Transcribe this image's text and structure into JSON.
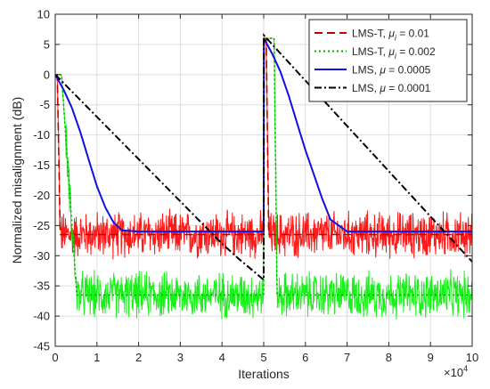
{
  "chart_data": {
    "type": "line",
    "title": "",
    "xlabel": "Iterations",
    "ylabel": "Normalized misalignment (dB)",
    "xlim": [
      0,
      100000
    ],
    "ylim": [
      -45,
      10
    ],
    "x_ticks": [
      0,
      10000,
      20000,
      30000,
      40000,
      50000,
      60000,
      70000,
      80000,
      90000,
      100000
    ],
    "x_tick_labels": [
      "0",
      "1",
      "2",
      "3",
      "4",
      "5",
      "6",
      "7",
      "8",
      "9",
      "10"
    ],
    "x_multiplier_label": "×10",
    "x_multiplier_exponent": "4",
    "y_ticks": [
      10,
      5,
      0,
      -5,
      -10,
      -15,
      -20,
      -25,
      -30,
      -35,
      -40,
      -45
    ],
    "y_tick_labels": [
      "10",
      "5",
      "0",
      "-5",
      "-10",
      "-15",
      "-20",
      "-25",
      "-30",
      "-35",
      "-40",
      "-45"
    ],
    "grid": true,
    "legend_position": "top-right",
    "series": [
      {
        "name": "LMS-T, μi = 0.01",
        "legend": {
          "prefix": "LMS-T, ",
          "symbol": "μ",
          "sub": "i",
          "suffix": " = 0.01"
        },
        "color": "#c00000",
        "noise_color": "#ff0000",
        "dash": "dashed",
        "noisy": true,
        "noise_amplitude": 3,
        "x": [
          0,
          500,
          1200,
          50000,
          50050,
          50600,
          51200,
          100000
        ],
        "y": [
          0,
          0,
          -26.5,
          -26.5,
          6,
          6,
          -26.5,
          -26.5
        ]
      },
      {
        "name": "LMS-T, μi = 0.002",
        "legend": {
          "prefix": "LMS-T, ",
          "symbol": "μ",
          "sub": "i",
          "suffix": " = 0.002"
        },
        "color": "#00b000",
        "noise_color": "#00ee00",
        "dash": "dotted",
        "noisy": true,
        "noise_amplitude": 3,
        "x": [
          0,
          1500,
          5200,
          50000,
          50050,
          52500,
          53200,
          100000
        ],
        "y": [
          0,
          0,
          -36.5,
          -36.5,
          6,
          6,
          -36.5,
          -36.5
        ]
      },
      {
        "name": "LMS, μ = 0.0005",
        "legend": {
          "prefix": "LMS, ",
          "symbol": "μ",
          "sub": "",
          "suffix": " = 0.0005"
        },
        "color": "#1010e0",
        "noise_color": "#1010e0",
        "dash": "solid",
        "noisy": false,
        "x": [
          0,
          2000,
          4000,
          6000,
          8000,
          10000,
          12000,
          14000,
          16000,
          20000,
          50000,
          50050,
          52000,
          54000,
          56000,
          58000,
          60000,
          62000,
          64000,
          66000,
          70000,
          100000
        ],
        "y": [
          0,
          -2.5,
          -5.5,
          -9.5,
          -14,
          -18.5,
          -22,
          -24.5,
          -25.8,
          -26,
          -26,
          6,
          3.5,
          0.5,
          -3.5,
          -8,
          -12.5,
          -16.5,
          -20.5,
          -24,
          -26,
          -26
        ]
      },
      {
        "name": "LMS, μ = 0.0001",
        "legend": {
          "prefix": "LMS, ",
          "symbol": "μ",
          "sub": "",
          "suffix": " = 0.0001"
        },
        "color": "#000000",
        "noise_color": "#000000",
        "dash": "dashdot",
        "noisy": false,
        "x": [
          0,
          10000,
          20000,
          30000,
          40000,
          44000,
          48000,
          50000,
          50050,
          60000,
          70000,
          80000,
          90000,
          100000
        ],
        "y": [
          0,
          -7,
          -14,
          -21,
          -28,
          -30.5,
          -32.8,
          -34,
          6.5,
          -1,
          -8.5,
          -16,
          -23.5,
          -31
        ]
      }
    ]
  }
}
